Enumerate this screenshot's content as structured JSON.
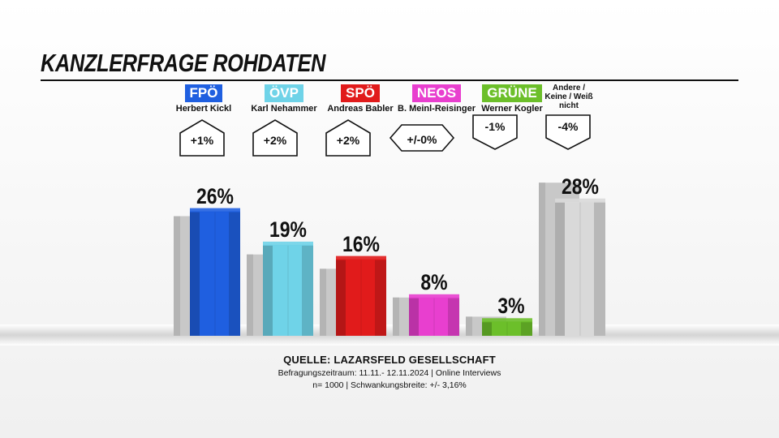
{
  "title": "KANZLERFRAGE ROHDATEN",
  "parties": [
    {
      "party": "FPÖ",
      "leader": "Herbert Kickl",
      "color": "#1f5fe0",
      "change": "+1%",
      "change_dir": "up"
    },
    {
      "party": "ÖVP",
      "leader": "Karl Nehammer",
      "color": "#6fd3e8",
      "change": "+2%",
      "change_dir": "up"
    },
    {
      "party": "SPÖ",
      "leader": "Andreas Babler",
      "color": "#e11b1b",
      "change": "+2%",
      "change_dir": "up"
    },
    {
      "party": "NEOS",
      "leader": "B. Meinl-Reisinger",
      "color": "#e83fcf",
      "change": "+/-0%",
      "change_dir": "flat"
    },
    {
      "party": "GRÜNE",
      "leader": "Werner Kogler",
      "color": "#6cbf2a",
      "change": "-1%",
      "change_dir": "down"
    }
  ],
  "other": {
    "label": "Andere / Keine / Weiß nicht",
    "change": "-4%",
    "change_dir": "down",
    "color": "#d9d9d9"
  },
  "chart_data": {
    "type": "bar",
    "title": "KANZLERFRAGE ROHDATEN",
    "categories": [
      "FPÖ",
      "ÖVP",
      "SPÖ",
      "NEOS",
      "GRÜNE",
      "Andere / Keine / Weiß nicht"
    ],
    "series": [
      {
        "values": [
          26,
          19,
          16,
          8,
          3,
          28
        ]
      },
      {
        "values": [
          25,
          17,
          14,
          8,
          4,
          32
        ]
      }
    ],
    "value_labels": [
      "26%",
      "19%",
      "16%",
      "8%",
      "3%",
      "28%"
    ],
    "ylim": [
      0,
      32
    ],
    "grid": false,
    "legend": "none"
  },
  "source": {
    "title": "QUELLE: LAZARSFELD GESELLSCHAFT",
    "line1": "Befragungszeitraum: 11.11.- 12.11.2024 | Online Interviews",
    "line2": "n= 1000 | Schwankungsbreite: +/- 3,16%"
  }
}
